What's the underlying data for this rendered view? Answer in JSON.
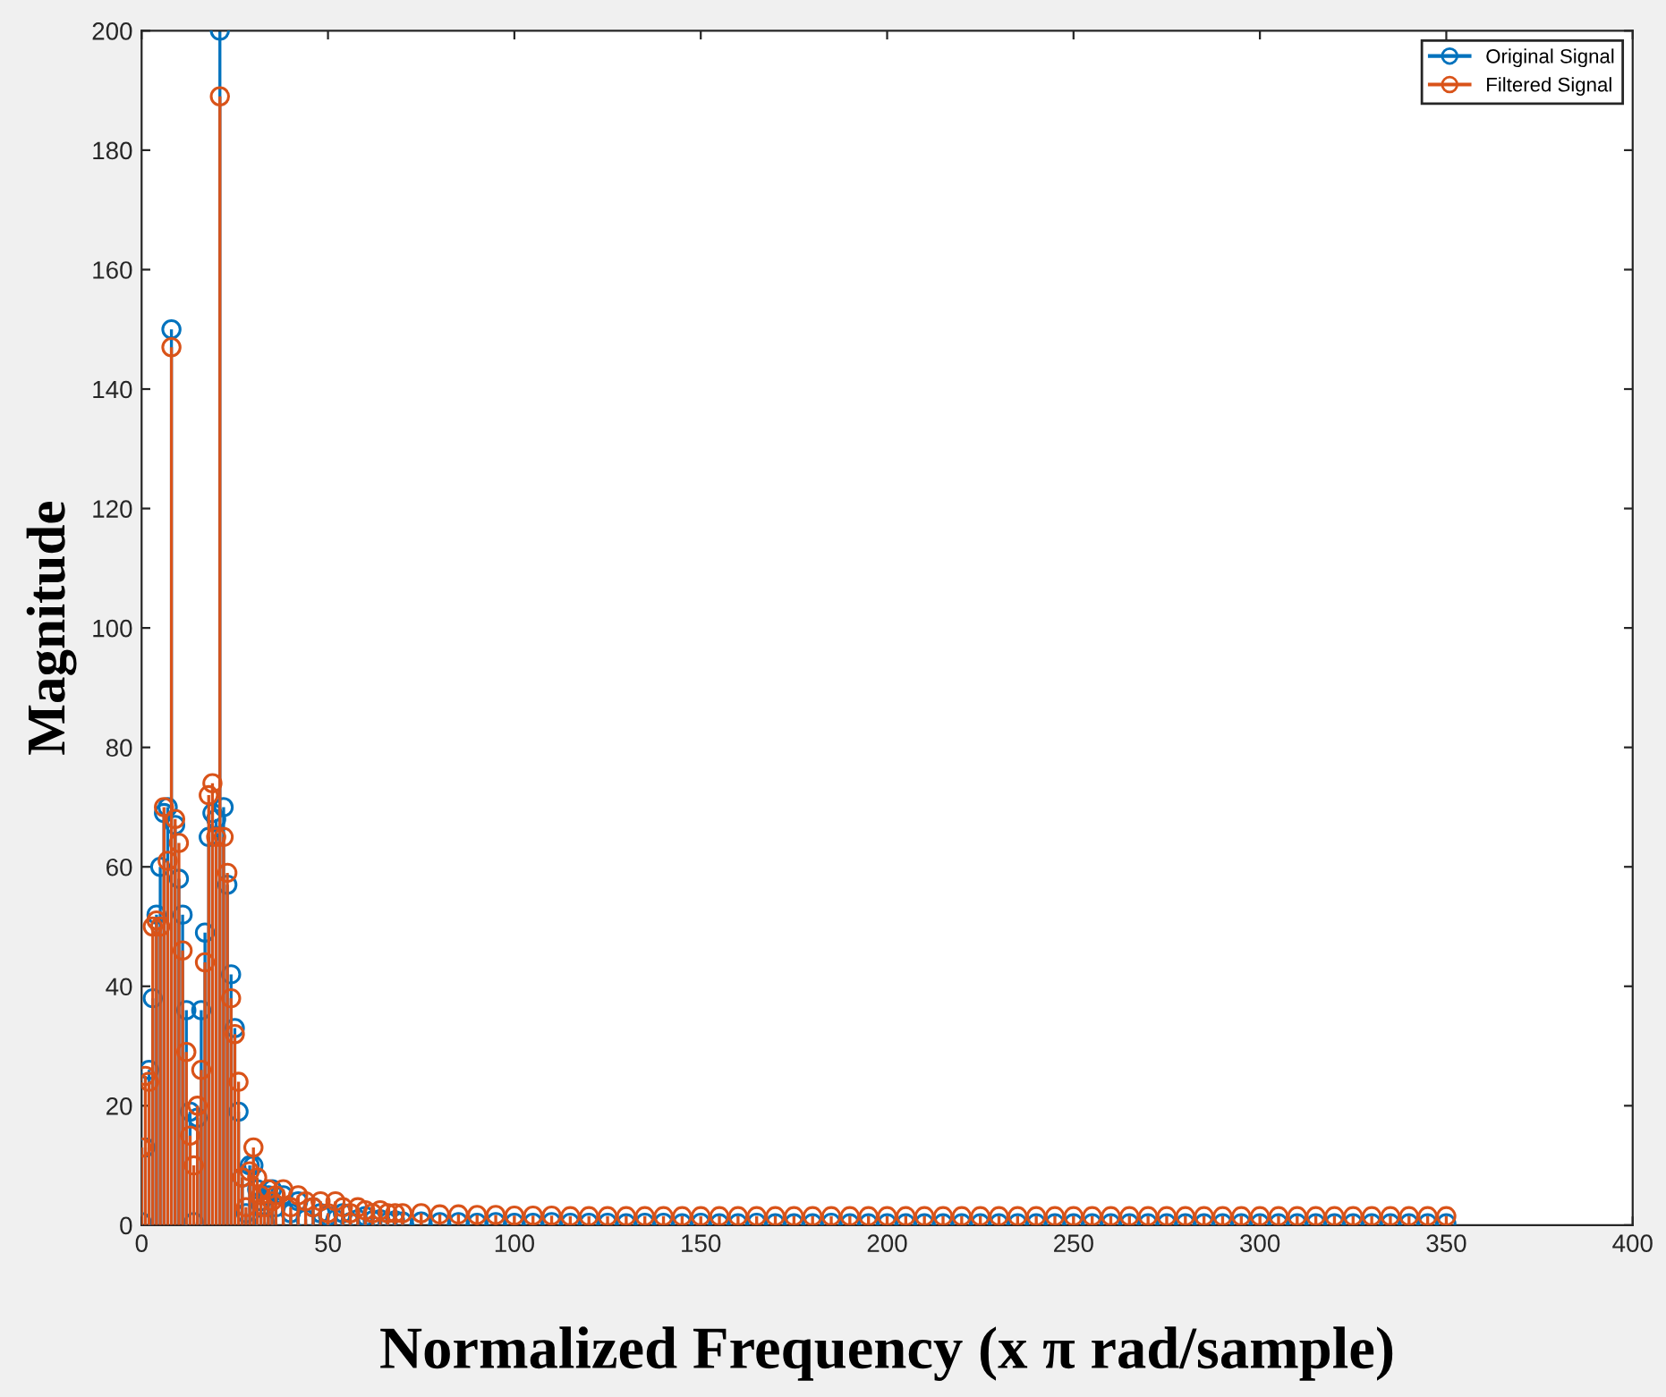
{
  "chart_data": {
    "type": "lollipop",
    "xlabel": "Normalized Frequency (x π rad/sample)",
    "ylabel": "Magnitude",
    "xlim": [
      0,
      400
    ],
    "xticks": [
      0,
      50,
      100,
      150,
      200,
      250,
      300,
      350,
      400
    ],
    "ylim": [
      0,
      200
    ],
    "yticks": [
      0,
      20,
      40,
      60,
      80,
      100,
      120,
      140,
      160,
      180,
      200
    ],
    "grid": false,
    "legend": "top right",
    "marker": "circle",
    "line_style": "solid",
    "series": [
      {
        "name": "Original Signal",
        "color": "#0072bd",
        "x": [
          0,
          1,
          2,
          3,
          4,
          5,
          6,
          7,
          8,
          9,
          10,
          11,
          12,
          13,
          14,
          15,
          16,
          17,
          18,
          19,
          20,
          21,
          22,
          23,
          24,
          25,
          26,
          27,
          28,
          29,
          30,
          31,
          32,
          33,
          34,
          35,
          36,
          38,
          40,
          42,
          44,
          46,
          48,
          50,
          52,
          54,
          56,
          58,
          60,
          62,
          64,
          66,
          68,
          70,
          75,
          80,
          85,
          90,
          95,
          100,
          105,
          110,
          115,
          120,
          125,
          130,
          135,
          140,
          145,
          150,
          155,
          160,
          165,
          170,
          175,
          180,
          185,
          190,
          195,
          200,
          205,
          210,
          215,
          220,
          225,
          230,
          235,
          240,
          245,
          250,
          255,
          260,
          265,
          270,
          275,
          280,
          285,
          290,
          295,
          300,
          305,
          310,
          315,
          320,
          325,
          330,
          335,
          340,
          345,
          350
        ],
        "values": [
          0.5,
          13,
          26,
          38,
          52,
          60,
          69,
          70,
          150,
          67,
          58,
          52,
          36,
          19,
          0.5,
          18,
          36,
          49,
          65,
          69,
          68,
          200,
          70,
          57,
          42,
          33,
          19,
          8,
          2,
          10,
          10,
          6,
          4,
          0.5,
          5,
          6,
          3,
          5,
          2,
          4,
          1,
          3,
          2,
          1.5,
          1,
          2,
          0.5,
          1,
          1.5,
          0.8,
          1,
          0.5,
          0.8,
          0.6,
          0.6,
          0.5,
          0.5,
          0.4,
          0.5,
          0.4,
          0.4,
          0.5,
          0.4,
          0.4,
          0.4,
          0.3,
          0.4,
          0.4,
          0.3,
          0.4,
          0.3,
          0.3,
          0.4,
          0.3,
          0.3,
          0.3,
          0.4,
          0.3,
          0.3,
          0.3,
          0.3,
          0.3,
          0.3,
          0.3,
          0.3,
          0.3,
          0.3,
          0.3,
          0.3,
          0.3,
          0.3,
          0.3,
          0.3,
          0.3,
          0.3,
          0.3,
          0.3,
          0.3,
          0.3,
          0.3,
          0.3,
          0.3,
          0.3,
          0.3,
          0.3,
          0.3,
          0.3,
          0.3,
          0.3,
          0.3
        ]
      },
      {
        "name": "Filtered Signal",
        "color": "#d95319",
        "x": [
          0,
          1,
          2,
          3,
          4,
          5,
          6,
          7,
          8,
          9,
          10,
          11,
          12,
          13,
          14,
          15,
          16,
          17,
          18,
          19,
          20,
          21,
          22,
          23,
          24,
          25,
          26,
          27,
          28,
          29,
          30,
          31,
          32,
          33,
          34,
          35,
          36,
          38,
          40,
          42,
          44,
          46,
          48,
          50,
          52,
          54,
          56,
          58,
          60,
          62,
          64,
          66,
          68,
          70,
          75,
          80,
          85,
          90,
          95,
          100,
          105,
          110,
          115,
          120,
          125,
          130,
          135,
          140,
          145,
          150,
          155,
          160,
          165,
          170,
          175,
          180,
          185,
          190,
          195,
          200,
          205,
          210,
          215,
          220,
          225,
          230,
          235,
          240,
          245,
          250,
          255,
          260,
          265,
          270,
          275,
          280,
          285,
          290,
          295,
          300,
          305,
          310,
          315,
          320,
          325,
          330,
          335,
          340,
          345,
          350
        ],
        "values": [
          13,
          25,
          24,
          50,
          51,
          50,
          70,
          61,
          147,
          68,
          64,
          46,
          29,
          15,
          10,
          20,
          26,
          44,
          72,
          74,
          65,
          189,
          65,
          59,
          38,
          32,
          24,
          8,
          3,
          9,
          13,
          8,
          5,
          3,
          6,
          4,
          5,
          6,
          3,
          5,
          4,
          3,
          4,
          2,
          4,
          3,
          2,
          3,
          2.5,
          2,
          2.5,
          2,
          2,
          2,
          2,
          1.8,
          1.8,
          1.7,
          1.7,
          1.6,
          1.6,
          1.6,
          1.5,
          1.5,
          1.5,
          1.5,
          1.5,
          1.5,
          1.5,
          1.5,
          1.5,
          1.5,
          1.5,
          1.5,
          1.5,
          1.5,
          1.5,
          1.5,
          1.5,
          1.5,
          1.5,
          1.5,
          1.5,
          1.5,
          1.5,
          1.5,
          1.5,
          1.5,
          1.5,
          1.5,
          1.5,
          1.5,
          1.5,
          1.5,
          1.5,
          1.5,
          1.5,
          1.5,
          1.5,
          1.5,
          1.5,
          1.5,
          1.5,
          1.5,
          1.5,
          1.5,
          1.5,
          1.5,
          1.5,
          1.5
        ]
      }
    ]
  }
}
